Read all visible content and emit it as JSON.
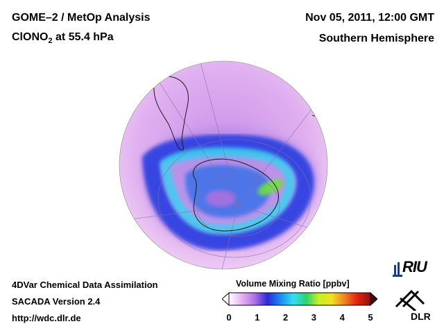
{
  "header": {
    "title_line1": "GOME–2 / MetOp Analysis",
    "title_line2_prefix": "ClONO",
    "title_line2_sub": "2",
    "title_line2_suffix": " at 55.4 hPa",
    "datetime": "Nov 05, 2011, 12:00 GMT",
    "hemisphere": "Southern Hemisphere"
  },
  "footer": {
    "line1": "4DVar Chemical Data Assimilation",
    "line2": "SACADA Version 2.4",
    "line3": "http://wdc.dlr.de"
  },
  "colorbar": {
    "title": "Volume Mixing Ratio [ppbv]",
    "ticks": [
      "0",
      "1",
      "2",
      "3",
      "4",
      "5"
    ],
    "min": 0,
    "max": 5,
    "stops": [
      "#ffffff",
      "#e6b3f0",
      "#b070e8",
      "#2a2ad8",
      "#1a8cf0",
      "#30e0f0",
      "#30d070",
      "#c8f020",
      "#f0e020",
      "#f08020",
      "#e02010",
      "#901010"
    ]
  },
  "logos": {
    "riu": "RIU",
    "dlr": "DLR"
  },
  "colors": {
    "background_purple": "#d8a0ec",
    "vortex_blue": "#2a58e8",
    "vortex_cyan": "#40c8f0",
    "hotspot_green": "#70e040",
    "land_outline": "#1a1a1a"
  }
}
